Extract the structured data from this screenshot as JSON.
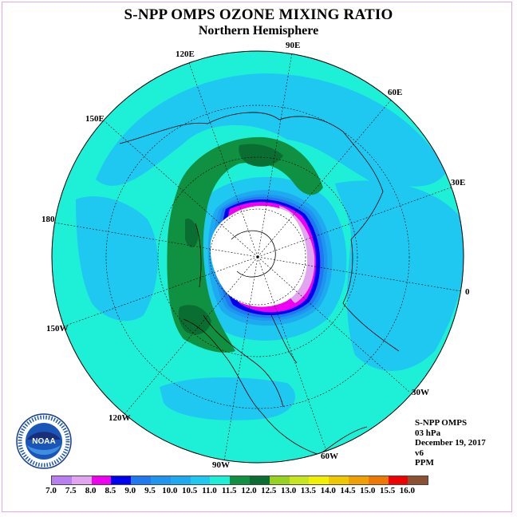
{
  "title": "S-NPP OMPS OZONE MIXING RATIO",
  "subtitle": "Northern Hemisphere",
  "longitude_labels": {
    "e120": "120E",
    "e90": "90E",
    "e60": "60E",
    "e150": "150E",
    "e30": "30E",
    "lon180": "180",
    "lon0": "0",
    "w150": "150W",
    "w30": "30W",
    "w120": "120W",
    "w60": "60W",
    "w90": "90W"
  },
  "info": {
    "instrument": "S-NPP OMPS",
    "level": "03 hPa",
    "date": "December 19, 2017",
    "version": "v6",
    "units": "PPM"
  },
  "colorbar": {
    "colors": [
      "#b87ff0",
      "#e1a5f0",
      "#f000f0",
      "#0000f0",
      "#1e78f0",
      "#1e96f0",
      "#1eaaf0",
      "#1ec8f0",
      "#1ef0d7",
      "#0f9141",
      "#0a6e32",
      "#96d21e",
      "#c8e61e",
      "#f0f000",
      "#f0c800",
      "#f0a000",
      "#f07800",
      "#f00000",
      "#8c5032"
    ],
    "labels": [
      "7.0",
      "7.5",
      "8.0",
      "8.5",
      "9.0",
      "9.5",
      "10.0",
      "10.5",
      "11.0",
      "11.5",
      "12.0",
      "12.5",
      "13.0",
      "13.5",
      "14.0",
      "14.5",
      "15.0",
      "15.5",
      "16.0"
    ]
  },
  "logo": {
    "text": "NOAA",
    "ring_text": "NATIONAL OCEANIC AND ATMOSPHERIC ADMINISTRATION • U.S. DEPARTMENT OF COMMERCE"
  }
}
